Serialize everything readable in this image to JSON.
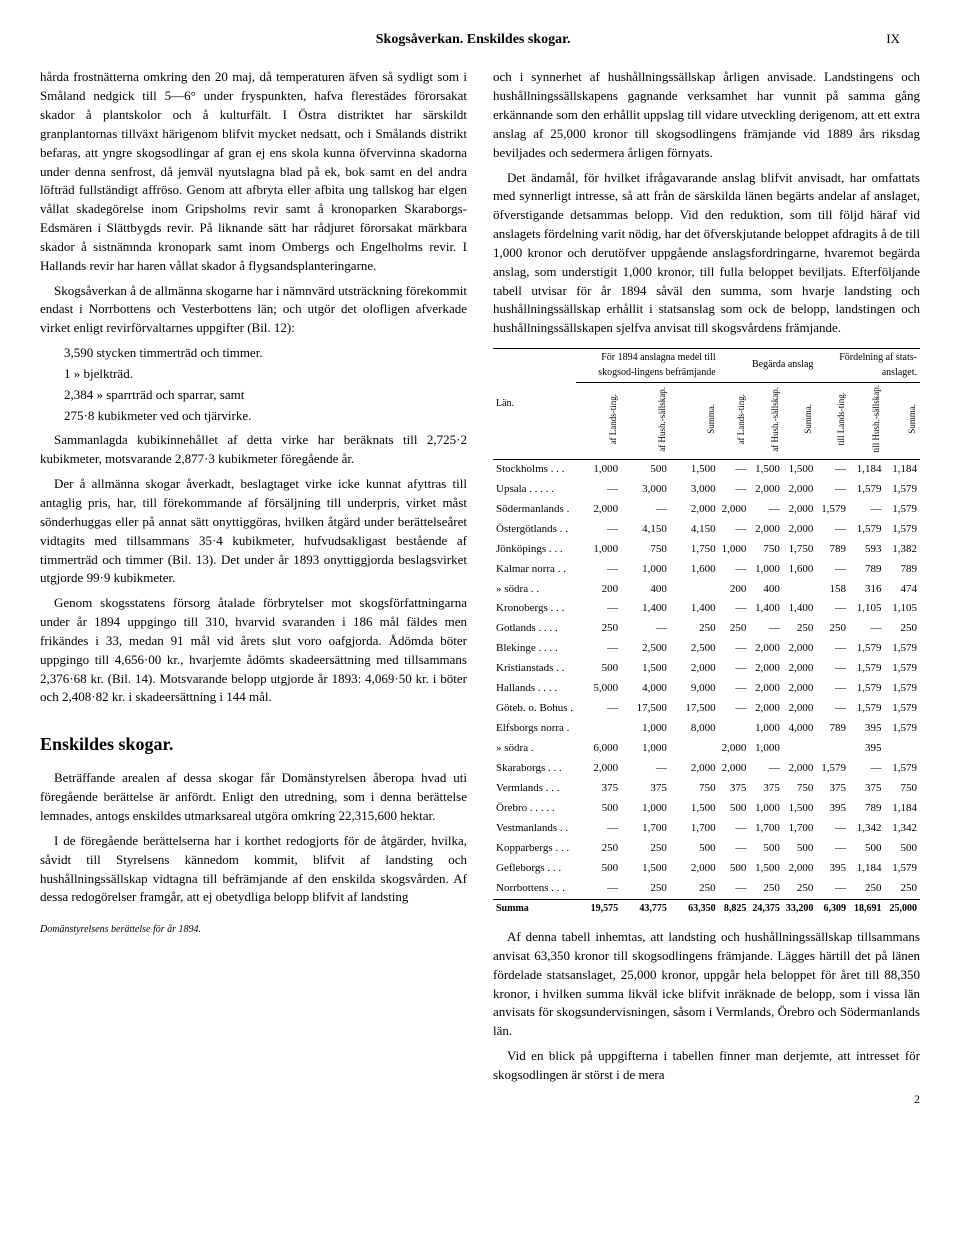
{
  "header": {
    "center": "Skogsåverkan.  Enskildes skogar.",
    "right": "IX"
  },
  "left": {
    "p1": "hårda frostnätterna omkring den 20 maj, då temperaturen äfven så sydligt som i Småland nedgick till 5—6° under fryspunkten, hafva flerestädes förorsakat skador å plantskolor och å kulturfält. I Östra distriktet har särskildt granplantornas tillväxt härigenom blifvit mycket nedsatt, och i Smålands distrikt befaras, att yngre skogsodlingar af gran ej ens skola kunna öfvervinna skadorna under denna senfrost, då jemväl nyutslagna blad på ek, bok samt en del andra löfträd fullständigt affröso. Genom att afbryta eller afbita ung tallskog har elgen vållat skadegörelse inom Gripsholms revir samt å kronoparken Skaraborgs-Edsmären i Slättbygds revir. På liknande sätt har rådjuret förorsakat märkbara skador å sistnämnda kronopark samt inom Ombergs och Engelholms revir. I Hallands revir har haren vållat skador å flygsandsplanteringarne.",
    "p2": "Skogsåverkan å de allmänna skogarne har i nämnvärd utsträckning förekommit endast i Norrbottens och Vesterbottens län; och utgör det olofligen afverkade virket enligt revirförvaltarnes uppgifter (Bil. 12):",
    "list": {
      "l1": "3,590 stycken timmerträd och timmer.",
      "l2": "1     »     bjelkträd.",
      "l3": "2,384    »     sparrträd och sparrar, samt",
      "l4": "275·8 kubikmeter ved och tjärvirke."
    },
    "p3": "Sammanlagda kubikinnehållet af detta virke har beräknats till 2,725·2 kubikmeter, motsvarande 2,877·3 kubikmeter föregående år.",
    "p4": "Der å allmänna skogar åverkadt, beslagtaget virke icke kunnat afyttras till antaglig pris, har, till förekommande af försäljning till underpris, virket måst sönderhuggas eller på annat sätt onyttiggöras, hvilken åtgärd under berättelseåret vidtagits med tillsammans 35·4 kubikmeter, hufvudsakligast bestående af timmerträd och timmer (Bil. 13). Det under år 1893 onyttiggjorda beslagsvirket utgjorde 99·9 kubikmeter.",
    "p5": "Genom skogsstatens försorg åtalade förbrytelser mot skogsförfattningarna under år 1894 uppgingo till 310, hvarvid svaranden i 186 mål fäldes men frikändes i 33, medan 91 mål vid årets slut voro oafgjorda. Ådömda böter uppgingo till 4,656·00 kr., hvarjemte ådömts skadeersättning med tillsammans 2,376·68 kr. (Bil. 14). Motsvarande belopp utgjorde år 1893: 4,069·50 kr. i böter och 2,408·82 kr. i skadeersättning i 144 mål.",
    "section": "Enskildes skogar.",
    "p6": "Beträffande arealen af dessa skogar får Domänstyrelsen åberopa hvad uti föregående berättelse är anfördt. Enligt den utredning, som i denna berättelse lemnades, antogs enskildes utmarksareal utgöra omkring 22,315,600 hektar.",
    "p7": "I de föregående berättelserna har i korthet redogjorts för de åtgärder, hvilka, såvidt till Styrelsens kännedom kommit, blifvit af landsting och hushållningssällskap vidtagna till befrämjande af den enskilda skogsvården. Af dessa redogörelser framgår, att ej obetydliga belopp blifvit af landsting",
    "footnote": "Domänstyrelsens berättelse för år 1894."
  },
  "right": {
    "p1": "och i synnerhet af hushållningssällskap årligen anvisade. Landstingens och hushållningssällskapens gagnande verksamhet har vunnit på samma gång erkännande som den erhållit uppslag till vidare utveckling derigenom, att ett extra anslag af 25,000 kronor till skogsodlingens främjande vid 1889 års riksdag beviljades och sedermera årligen förnyats.",
    "p2": "Det ändamål, för hvilket ifrågavarande anslag blifvit anvisadt, har omfattats med synnerligt intresse, så att från de särskilda länen begärts andelar af anslaget, öfverstigande detsammas belopp. Vid den reduktion, som till följd häraf vid anslagets fördelning varit nödig, har det öfverskjutande beloppet afdragits å de till 1,000 kronor och derutöfver uppgående anslagsfordringarne, hvaremot begärda anslag, som understigit 1,000 kronor, till fulla beloppet beviljats. Efterföljande tabell utvisar för år 1894 såväl den summa, som hvarje landsting och hushållningssällskap erhållit i statsanslag som ock de belopp, landstingen och hushållningssällskapen sjelfva anvisat till skogsvårdens främjande.",
    "p3": "Af denna tabell inhemtas, att landsting och hushållningssällskap tillsammans anvisat 63,350 kronor till skogsodlingens främjande. Lägges härtill det på länen fördelade statsanslaget, 25,000 kronor, uppgår hela beloppet för året till 88,350 kronor, i hvilken summa likväl icke blifvit inräknade de belopp, som i vissa län anvisats för skogsundervisningen, såsom i Vermlands, Örebro och Södermanlands län.",
    "p4": "Vid en blick på uppgifterna i tabellen finner man derjemte, att intresset för skogsodlingen är störst i de mera",
    "pagenum": "2"
  },
  "table": {
    "group_headers": [
      "För 1894 anslagna medel till skogsod-lingens befrämjande",
      "Begärda anslag",
      "Fördelning af stats-anslaget."
    ],
    "sub_headers": [
      "Län.",
      "af Lands-ting.",
      "af Hush.-sällskap.",
      "Summa.",
      "af Lands-ting.",
      "af Hush.-sällskap.",
      "Summa.",
      "till Lands-ting.",
      "till Hush.-sällskap.",
      "Summa."
    ],
    "rows": [
      [
        "Stockholms . . .",
        "1,000",
        "500",
        "1,500",
        "—",
        "1,500",
        "1,500",
        "—",
        "1,184",
        "1,184"
      ],
      [
        "Upsala . . . . .",
        "—",
        "3,000",
        "3,000",
        "—",
        "2,000",
        "2,000",
        "—",
        "1,579",
        "1,579"
      ],
      [
        "Södermanlands .",
        "2,000",
        "—",
        "2,000",
        "2,000",
        "—",
        "2,000",
        "1,579",
        "—",
        "1,579"
      ],
      [
        "Östergötlands . .",
        "—",
        "4,150",
        "4,150",
        "—",
        "2,000",
        "2,000",
        "—",
        "1,579",
        "1,579"
      ],
      [
        "Jönköpings . . .",
        "1,000",
        "750",
        "1,750",
        "1,000",
        "750",
        "1,750",
        "789",
        "593",
        "1,382"
      ],
      [
        "Kalmar norra . .",
        "—",
        "1,000",
        "1,600",
        "—",
        "1,000",
        "1,600",
        "—",
        "789",
        "789"
      ],
      [
        "»    södra . .",
        "200",
        "400",
        "",
        "200",
        "400",
        "",
        "158",
        "316",
        "474"
      ],
      [
        "Kronobergs . . .",
        "—",
        "1,400",
        "1,400",
        "—",
        "1,400",
        "1,400",
        "—",
        "1,105",
        "1,105"
      ],
      [
        "Gotlands . . . .",
        "250",
        "—",
        "250",
        "250",
        "—",
        "250",
        "250",
        "—",
        "250"
      ],
      [
        "Blekinge . . . .",
        "—",
        "2,500",
        "2,500",
        "—",
        "2,000",
        "2,000",
        "—",
        "1,579",
        "1,579"
      ],
      [
        "Kristianstads . .",
        "500",
        "1,500",
        "2,000",
        "—",
        "2,000",
        "2,000",
        "—",
        "1,579",
        "1,579"
      ],
      [
        "Hallands . . . .",
        "5,000",
        "4,000",
        "9,000",
        "—",
        "2,000",
        "2,000",
        "—",
        "1,579",
        "1,579"
      ],
      [
        "Göteb. o. Bohus .",
        "—",
        "17,500",
        "17,500",
        "—",
        "2,000",
        "2,000",
        "—",
        "1,579",
        "1,579"
      ],
      [
        "Elfsborgs norra .",
        "",
        "1,000",
        "8,000",
        "",
        "1,000",
        "4,000",
        "789",
        "395",
        "1,579"
      ],
      [
        "»    södra .",
        "6,000",
        "1,000",
        "",
        "2,000",
        "1,000",
        "",
        "",
        "395",
        ""
      ],
      [
        "Skaraborgs . . .",
        "2,000",
        "—",
        "2,000",
        "2,000",
        "—",
        "2,000",
        "1,579",
        "—",
        "1,579"
      ],
      [
        "Vermlands . . .",
        "375",
        "375",
        "750",
        "375",
        "375",
        "750",
        "375",
        "375",
        "750"
      ],
      [
        "Örebro . . . . .",
        "500",
        "1,000",
        "1,500",
        "500",
        "1,000",
        "1,500",
        "395",
        "789",
        "1,184"
      ],
      [
        "Vestmanlands . .",
        "—",
        "1,700",
        "1,700",
        "—",
        "1,700",
        "1,700",
        "—",
        "1,342",
        "1,342"
      ],
      [
        "Kopparbergs . . .",
        "250",
        "250",
        "500",
        "—",
        "500",
        "500",
        "—",
        "500",
        "500"
      ],
      [
        "Gefleborgs . . .",
        "500",
        "1,500",
        "2,000",
        "500",
        "1,500",
        "2,000",
        "395",
        "1,184",
        "1,579"
      ],
      [
        "Norrbottens . . .",
        "—",
        "250",
        "250",
        "—",
        "250",
        "250",
        "—",
        "250",
        "250"
      ]
    ],
    "sum": [
      "Summa",
      "19,575",
      "43,775",
      "63,350",
      "8,825",
      "24,375",
      "33,200",
      "6,309",
      "18,691",
      "25,000"
    ]
  }
}
